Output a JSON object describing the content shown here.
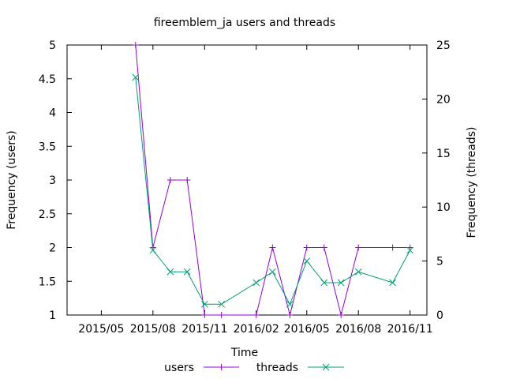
{
  "chart_data": {
    "type": "line",
    "title": "fireemblem_ja users and threads",
    "xlabel": "Time",
    "ylabel": "Frequency (users)",
    "y2label": "Frequency (threads)",
    "x_range": [
      "2015-03-01",
      "2016-12-01"
    ],
    "x_ticks": [
      "2015/05",
      "2015/08",
      "2015/11",
      "2016/02",
      "2016/05",
      "2016/08",
      "2016/11"
    ],
    "ylim": [
      1,
      5
    ],
    "y_ticks": [
      "1",
      "1.5",
      "2",
      "2.5",
      "3",
      "3.5",
      "4",
      "4.5",
      "5"
    ],
    "y2lim": [
      0,
      25
    ],
    "y2_ticks": [
      "0",
      "5",
      "10",
      "15",
      "20",
      "25"
    ],
    "grid": false,
    "legend_position": "bottom-center",
    "series": [
      {
        "name": "users",
        "axis": "left",
        "color": "#9400d3",
        "marker": "plus",
        "points": [
          {
            "x": "2015-07-01",
            "y": 5
          },
          {
            "x": "2015-08-01",
            "y": 2
          },
          {
            "x": "2015-09-01",
            "y": 3
          },
          {
            "x": "2015-10-01",
            "y": 3
          },
          {
            "x": "2015-11-01",
            "y": 1
          },
          {
            "x": "2015-12-01",
            "y": 1
          },
          {
            "x": "2016-02-01",
            "y": 1
          },
          {
            "x": "2016-03-01",
            "y": 2
          },
          {
            "x": "2016-04-01",
            "y": 1
          },
          {
            "x": "2016-05-01",
            "y": 2
          },
          {
            "x": "2016-06-01",
            "y": 2
          },
          {
            "x": "2016-07-01",
            "y": 1
          },
          {
            "x": "2016-08-01",
            "y": 2
          },
          {
            "x": "2016-10-01",
            "y": 2
          },
          {
            "x": "2016-11-01",
            "y": 2
          }
        ]
      },
      {
        "name": "threads",
        "axis": "right",
        "color": "#009e73",
        "marker": "cross",
        "points": [
          {
            "x": "2015-07-01",
            "y": 22
          },
          {
            "x": "2015-08-01",
            "y": 6
          },
          {
            "x": "2015-09-01",
            "y": 4
          },
          {
            "x": "2015-10-01",
            "y": 4
          },
          {
            "x": "2015-11-01",
            "y": 1
          },
          {
            "x": "2015-12-01",
            "y": 1
          },
          {
            "x": "2016-02-01",
            "y": 3
          },
          {
            "x": "2016-03-01",
            "y": 4
          },
          {
            "x": "2016-04-01",
            "y": 1
          },
          {
            "x": "2016-05-01",
            "y": 5
          },
          {
            "x": "2016-06-01",
            "y": 3
          },
          {
            "x": "2016-07-01",
            "y": 3
          },
          {
            "x": "2016-08-01",
            "y": 4
          },
          {
            "x": "2016-10-01",
            "y": 3
          },
          {
            "x": "2016-11-01",
            "y": 6
          }
        ]
      }
    ]
  }
}
